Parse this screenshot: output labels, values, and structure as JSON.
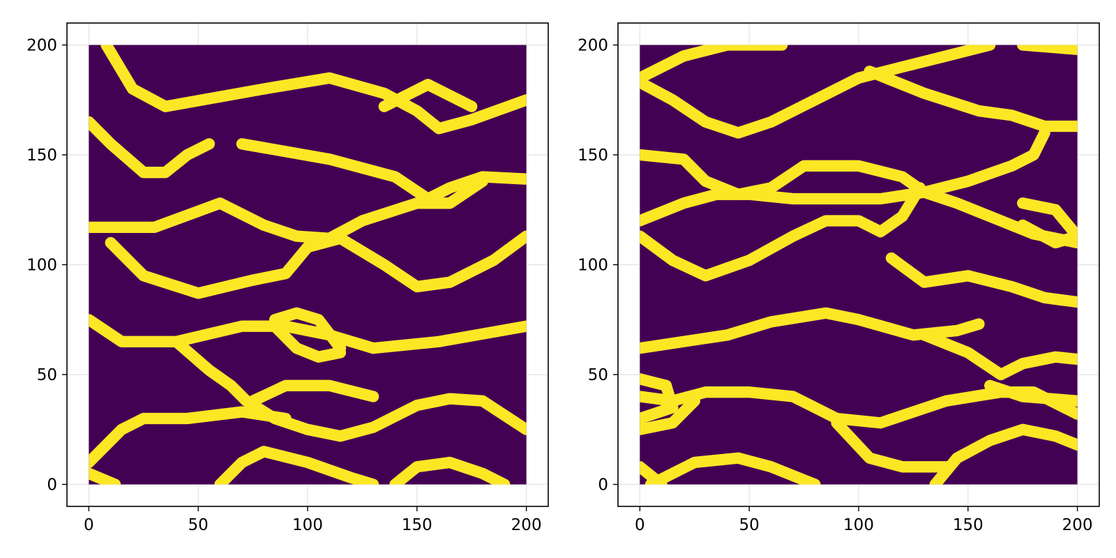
{
  "chart_data": [
    {
      "type": "heatmap",
      "title": "",
      "xlabel": "",
      "ylabel": "",
      "xlim": [
        -10,
        210
      ],
      "ylim": [
        -10,
        210
      ],
      "grid": true,
      "x_ticks": [
        0,
        50,
        100,
        150,
        200
      ],
      "y_ticks": [
        0,
        50,
        100,
        150,
        200
      ],
      "colors": {
        "background": "#440154",
        "channel": "#fde725"
      },
      "channels": [
        {
          "name": "",
          "points": [
            [
              8,
              200
            ],
            [
              20,
              180
            ],
            [
              35,
              172
            ],
            [
              80,
              180
            ],
            [
              110,
              185
            ],
            [
              135,
              178
            ],
            [
              150,
              170
            ],
            [
              160,
              162
            ],
            [
              175,
              166
            ],
            [
              200,
              175
            ]
          ]
        },
        {
          "name": "",
          "points": [
            [
              135,
              172
            ],
            [
              155,
              182
            ],
            [
              175,
              172
            ]
          ]
        },
        {
          "name": "",
          "points": [
            [
              0,
              165
            ],
            [
              10,
              155
            ],
            [
              25,
              142
            ],
            [
              35,
              142
            ],
            [
              45,
              150
            ],
            [
              55,
              155
            ]
          ]
        },
        {
          "name": "",
          "points": [
            [
              70,
              155
            ],
            [
              110,
              148
            ],
            [
              140,
              140
            ],
            [
              155,
              130
            ],
            [
              165,
              135
            ],
            [
              180,
              140
            ],
            [
              200,
              139
            ]
          ]
        },
        {
          "name": "",
          "points": [
            [
              0,
              117
            ],
            [
              30,
              117
            ],
            [
              60,
              128
            ],
            [
              80,
              118
            ],
            [
              95,
              113
            ],
            [
              110,
              112
            ],
            [
              125,
              120
            ],
            [
              150,
              128
            ],
            [
              165,
              128
            ],
            [
              180,
              138
            ]
          ]
        },
        {
          "name": "",
          "points": [
            [
              10,
              110
            ],
            [
              25,
              95
            ],
            [
              50,
              87
            ],
            [
              75,
              93
            ],
            [
              90,
              96
            ],
            [
              100,
              108
            ],
            [
              115,
              112
            ],
            [
              135,
              100
            ],
            [
              150,
              90
            ],
            [
              165,
              92
            ],
            [
              185,
              102
            ],
            [
              200,
              113
            ]
          ]
        },
        {
          "name": "",
          "points": [
            [
              0,
              75
            ],
            [
              15,
              65
            ],
            [
              40,
              65
            ],
            [
              70,
              72
            ],
            [
              90,
              72
            ],
            [
              110,
              68
            ],
            [
              130,
              62
            ],
            [
              160,
              65
            ],
            [
              200,
              72
            ]
          ]
        },
        {
          "name": "",
          "points": [
            [
              85,
              75
            ],
            [
              95,
              78
            ],
            [
              105,
              75
            ],
            [
              115,
              62
            ]
          ]
        },
        {
          "name": "",
          "points": [
            [
              85,
              72
            ],
            [
              95,
              62
            ],
            [
              105,
              58
            ],
            [
              115,
              60
            ]
          ]
        },
        {
          "name": "",
          "points": [
            [
              40,
              65
            ],
            [
              55,
              52
            ],
            [
              65,
              45
            ],
            [
              72,
              38
            ],
            [
              85,
              30
            ],
            [
              100,
              25
            ],
            [
              115,
              22
            ],
            [
              130,
              26
            ],
            [
              150,
              36
            ],
            [
              165,
              39
            ],
            [
              180,
              38
            ],
            [
              200,
              25
            ]
          ]
        },
        {
          "name": "",
          "points": [
            [
              75,
              38
            ],
            [
              90,
              45
            ],
            [
              110,
              45
            ],
            [
              130,
              40
            ]
          ]
        },
        {
          "name": "",
          "points": [
            [
              0,
              10
            ],
            [
              15,
              25
            ],
            [
              25,
              30
            ],
            [
              45,
              30
            ],
            [
              70,
              33
            ],
            [
              90,
              30
            ]
          ]
        },
        {
          "name": "",
          "points": [
            [
              0,
              5
            ],
            [
              12,
              0
            ]
          ]
        },
        {
          "name": "",
          "points": [
            [
              60,
              0
            ],
            [
              70,
              10
            ],
            [
              80,
              15
            ],
            [
              100,
              10
            ],
            [
              120,
              3
            ],
            [
              130,
              0
            ]
          ]
        },
        {
          "name": "",
          "points": [
            [
              140,
              0
            ],
            [
              150,
              8
            ],
            [
              165,
              10
            ],
            [
              180,
              5
            ],
            [
              190,
              0
            ]
          ]
        }
      ]
    },
    {
      "type": "heatmap",
      "title": "",
      "xlabel": "",
      "ylabel": "",
      "xlim": [
        -10,
        210
      ],
      "ylim": [
        -10,
        210
      ],
      "grid": true,
      "x_ticks": [
        0,
        50,
        100,
        150,
        200
      ],
      "y_ticks": [
        0,
        50,
        100,
        150,
        200
      ],
      "colors": {
        "background": "#440154",
        "channel": "#fde725"
      },
      "channels": [
        {
          "name": "",
          "points": [
            [
              0,
              185
            ],
            [
              20,
              195
            ],
            [
              40,
              200
            ],
            [
              65,
              200
            ]
          ]
        },
        {
          "name": "",
          "points": [
            [
              0,
              183
            ],
            [
              15,
              175
            ],
            [
              30,
              165
            ],
            [
              45,
              160
            ],
            [
              60,
              165
            ],
            [
              80,
              175
            ],
            [
              100,
              185
            ],
            [
              120,
              190
            ],
            [
              140,
              195
            ],
            [
              160,
              200
            ]
          ]
        },
        {
          "name": "",
          "points": [
            [
              105,
              188
            ],
            [
              130,
              178
            ],
            [
              155,
              170
            ],
            [
              170,
              168
            ],
            [
              185,
              163
            ],
            [
              200,
              163
            ]
          ]
        },
        {
          "name": "",
          "points": [
            [
              175,
              200
            ],
            [
              200,
              198
            ]
          ]
        },
        {
          "name": "",
          "points": [
            [
              0,
              150
            ],
            [
              20,
              148
            ],
            [
              30,
              138
            ],
            [
              45,
              132
            ],
            [
              60,
              135
            ],
            [
              75,
              145
            ],
            [
              100,
              145
            ],
            [
              120,
              140
            ],
            [
              130,
              133
            ],
            [
              150,
              138
            ],
            [
              170,
              145
            ],
            [
              180,
              150
            ],
            [
              185,
              160
            ]
          ]
        },
        {
          "name": "",
          "points": [
            [
              0,
              120
            ],
            [
              20,
              128
            ],
            [
              35,
              132
            ],
            [
              50,
              132
            ],
            [
              70,
              130
            ],
            [
              90,
              130
            ],
            [
              110,
              130
            ],
            [
              130,
              133
            ],
            [
              145,
              128
            ],
            [
              160,
              122
            ],
            [
              180,
              114
            ],
            [
              200,
              110
            ]
          ]
        },
        {
          "name": "",
          "points": [
            [
              0,
              113
            ],
            [
              15,
              102
            ],
            [
              30,
              95
            ],
            [
              50,
              102
            ],
            [
              70,
              113
            ],
            [
              85,
              120
            ],
            [
              100,
              120
            ],
            [
              110,
              115
            ],
            [
              120,
              122
            ],
            [
              128,
              135
            ]
          ]
        },
        {
          "name": "",
          "points": [
            [
              175,
              128
            ],
            [
              190,
              125
            ],
            [
              200,
              113
            ]
          ]
        },
        {
          "name": "",
          "points": [
            [
              175,
              118
            ],
            [
              190,
              110
            ],
            [
              200,
              113
            ]
          ]
        },
        {
          "name": "",
          "points": [
            [
              115,
              103
            ],
            [
              130,
              92
            ],
            [
              150,
              95
            ],
            [
              170,
              90
            ],
            [
              185,
              85
            ],
            [
              200,
              83
            ]
          ]
        },
        {
          "name": "",
          "points": [
            [
              0,
              62
            ],
            [
              40,
              68
            ],
            [
              60,
              74
            ],
            [
              85,
              78
            ],
            [
              100,
              75
            ],
            [
              125,
              68
            ],
            [
              145,
              70
            ],
            [
              155,
              73
            ]
          ]
        },
        {
          "name": "",
          "points": [
            [
              130,
              68
            ],
            [
              150,
              60
            ],
            [
              165,
              50
            ],
            [
              175,
              55
            ],
            [
              190,
              58
            ],
            [
              200,
              57
            ]
          ]
        },
        {
          "name": "",
          "points": [
            [
              0,
              40
            ],
            [
              15,
              38
            ],
            [
              30,
              42
            ],
            [
              50,
              42
            ],
            [
              70,
              40
            ],
            [
              90,
              30
            ],
            [
              110,
              28
            ],
            [
              140,
              38
            ],
            [
              165,
              42
            ],
            [
              180,
              42
            ],
            [
              200,
              32
            ]
          ]
        },
        {
          "name": "",
          "points": [
            [
              0,
              48
            ],
            [
              12,
              45
            ],
            [
              15,
              35
            ],
            [
              0,
              30
            ]
          ]
        },
        {
          "name": "",
          "points": [
            [
              160,
              45
            ],
            [
              175,
              40
            ],
            [
              200,
              38
            ]
          ]
        },
        {
          "name": "",
          "points": [
            [
              0,
              25
            ],
            [
              15,
              28
            ],
            [
              25,
              38
            ]
          ]
        },
        {
          "name": "",
          "points": [
            [
              0,
              8
            ],
            [
              10,
              0
            ]
          ]
        },
        {
          "name": "",
          "points": [
            [
              5,
              0
            ],
            [
              25,
              10
            ],
            [
              45,
              12
            ],
            [
              60,
              8
            ],
            [
              80,
              0
            ]
          ]
        },
        {
          "name": "",
          "points": [
            [
              90,
              28
            ],
            [
              105,
              12
            ],
            [
              120,
              8
            ],
            [
              140,
              8
            ]
          ]
        },
        {
          "name": "",
          "points": [
            [
              135,
              0
            ],
            [
              145,
              12
            ],
            [
              160,
              20
            ],
            [
              175,
              25
            ],
            [
              190,
              22
            ],
            [
              200,
              18
            ]
          ]
        }
      ]
    }
  ]
}
